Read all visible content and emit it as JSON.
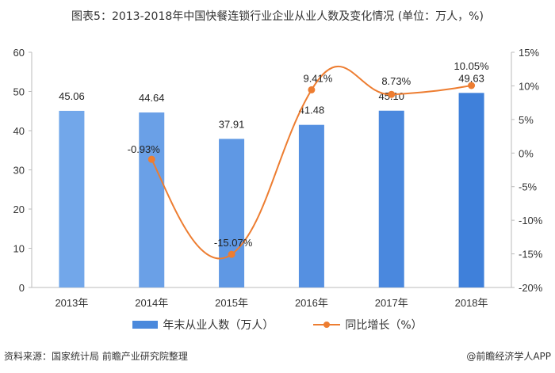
{
  "title": "图表5：2013-2018年中国快餐连锁行业企业从业人数及变化情况 (单位：万人，%)",
  "source": "资料来源：国家统计局 前瞻产业研究院整理",
  "brand": "@前瞻经济学人APP",
  "chart_data": {
    "type": "bar+line",
    "categories": [
      "2013年",
      "2014年",
      "2015年",
      "2016年",
      "2017年",
      "2018年"
    ],
    "series": [
      {
        "name": "年末从业人数（万人）",
        "type": "bar",
        "axis": "left",
        "values": [
          45.06,
          44.64,
          37.91,
          41.48,
          45.1,
          49.63
        ],
        "labels": [
          "45.06",
          "44.64",
          "37.91",
          "41.48",
          "45.10",
          "49.63"
        ],
        "color": "#4a89dc"
      },
      {
        "name": "同比增长（%）",
        "type": "line",
        "axis": "right",
        "values": [
          null,
          -0.93,
          -15.07,
          9.41,
          8.73,
          10.05
        ],
        "labels": [
          "",
          "-0.93%",
          "-15.07%",
          "9.41%",
          "8.73%",
          "10.05%"
        ],
        "color": "#ed7d31"
      }
    ],
    "left_axis": {
      "min": 0,
      "max": 60,
      "step": 10,
      "ticks": [
        "0",
        "10",
        "20",
        "30",
        "40",
        "50",
        "60"
      ]
    },
    "right_axis": {
      "min": -20,
      "max": 15,
      "step": 5,
      "ticks": [
        "-20%",
        "-15%",
        "-10%",
        "-5%",
        "0%",
        "5%",
        "10%",
        "15%"
      ]
    },
    "legend_position": "bottom"
  }
}
